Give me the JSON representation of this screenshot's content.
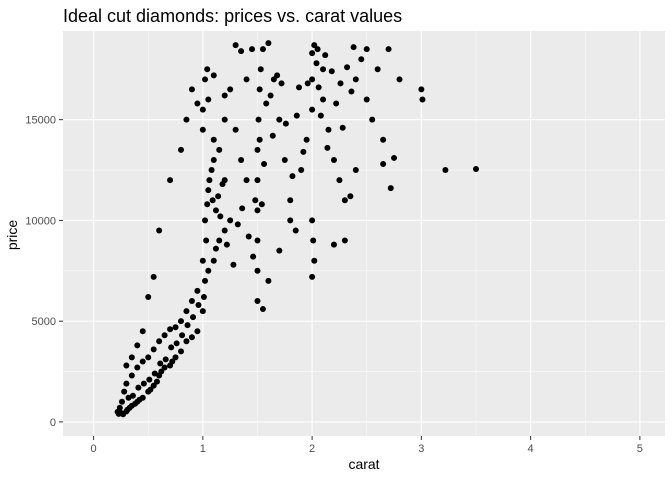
{
  "chart_data": {
    "type": "scatter",
    "title": "Ideal cut diamonds: prices vs. carat values",
    "xlabel": "carat",
    "ylabel": "price",
    "xlim": [
      -0.28,
      5.23
    ],
    "ylim": [
      -700,
      19400
    ],
    "x_ticks": [
      0,
      1,
      2,
      3,
      4,
      5
    ],
    "x_tick_labels": [
      "0",
      "1",
      "2",
      "3",
      "4",
      "5"
    ],
    "y_ticks": [
      0,
      5000,
      10000,
      15000
    ],
    "y_tick_labels": [
      "0",
      "5000",
      "10000",
      "15000"
    ],
    "grid": true,
    "point_color": "#000000",
    "panel_color": "#ebebeb",
    "series": [
      {
        "values": [
          [
            0.23,
            400
          ],
          [
            0.25,
            450
          ],
          [
            0.27,
            380
          ],
          [
            0.3,
            520
          ],
          [
            0.31,
            600
          ],
          [
            0.33,
            700
          ],
          [
            0.35,
            800
          ],
          [
            0.38,
            900
          ],
          [
            0.4,
            1000
          ],
          [
            0.42,
            1100
          ],
          [
            0.45,
            1200
          ],
          [
            0.5,
            1500
          ],
          [
            0.52,
            1600
          ],
          [
            0.55,
            1800
          ],
          [
            0.58,
            2000
          ],
          [
            0.6,
            2300
          ],
          [
            0.62,
            2500
          ],
          [
            0.65,
            2700
          ],
          [
            0.7,
            2800
          ],
          [
            0.72,
            3000
          ],
          [
            0.75,
            3200
          ],
          [
            0.8,
            3500
          ],
          [
            0.85,
            4000
          ],
          [
            0.9,
            4200
          ],
          [
            0.95,
            4500
          ],
          [
            1.0,
            5500
          ],
          [
            1.01,
            6200
          ],
          [
            1.02,
            7000
          ],
          [
            1.05,
            7500
          ],
          [
            1.1,
            8000
          ],
          [
            1.12,
            8600
          ],
          [
            1.15,
            9000
          ],
          [
            1.2,
            9500
          ],
          [
            1.25,
            10000
          ],
          [
            0.3,
            1900
          ],
          [
            0.35,
            2300
          ],
          [
            0.4,
            2700
          ],
          [
            0.45,
            3000
          ],
          [
            0.5,
            3200
          ],
          [
            0.55,
            3600
          ],
          [
            0.6,
            4000
          ],
          [
            0.65,
            4300
          ],
          [
            0.7,
            4600
          ],
          [
            0.75,
            4700
          ],
          [
            0.8,
            5000
          ],
          [
            0.85,
            5500
          ],
          [
            0.9,
            6000
          ],
          [
            0.95,
            6500
          ],
          [
            1.0,
            8000
          ],
          [
            1.02,
            10000
          ],
          [
            1.05,
            11500
          ],
          [
            1.08,
            12500
          ],
          [
            1.1,
            13000
          ],
          [
            1.15,
            13500
          ],
          [
            1.2,
            12000
          ],
          [
            1.0,
            14500
          ],
          [
            1.0,
            15500
          ],
          [
            1.02,
            17000
          ],
          [
            1.04,
            17500
          ],
          [
            1.05,
            16000
          ],
          [
            1.1,
            14000
          ],
          [
            1.2,
            15000
          ],
          [
            1.25,
            16500
          ],
          [
            1.3,
            14500
          ],
          [
            1.35,
            13000
          ],
          [
            1.4,
            12000
          ],
          [
            1.5,
            9000
          ],
          [
            1.5,
            10500
          ],
          [
            1.5,
            12000
          ],
          [
            1.5,
            13500
          ],
          [
            1.51,
            15000
          ],
          [
            1.52,
            16500
          ],
          [
            1.53,
            17500
          ],
          [
            1.55,
            18500
          ],
          [
            1.6,
            18800
          ],
          [
            1.65,
            17000
          ],
          [
            1.7,
            15000
          ],
          [
            1.75,
            13000
          ],
          [
            1.8,
            11000
          ],
          [
            1.85,
            9500
          ],
          [
            1.5,
            7500
          ],
          [
            1.5,
            6000
          ],
          [
            1.55,
            5600
          ],
          [
            1.6,
            7000
          ],
          [
            1.7,
            8500
          ],
          [
            1.8,
            10000
          ],
          [
            1.9,
            12500
          ],
          [
            1.95,
            14000
          ],
          [
            2.0,
            15500
          ],
          [
            2.0,
            17000
          ],
          [
            2.0,
            18300
          ],
          [
            2.02,
            18700
          ],
          [
            2.05,
            18500
          ],
          [
            2.1,
            17500
          ],
          [
            2.1,
            16000
          ],
          [
            2.15,
            14500
          ],
          [
            2.2,
            13000
          ],
          [
            2.25,
            12000
          ],
          [
            2.3,
            11000
          ],
          [
            2.0,
            10000
          ],
          [
            2.01,
            9000
          ],
          [
            2.02,
            8000
          ],
          [
            2.0,
            7200
          ],
          [
            2.2,
            8800
          ],
          [
            2.3,
            9000
          ],
          [
            2.35,
            11200
          ],
          [
            2.4,
            12500
          ],
          [
            2.4,
            17000
          ],
          [
            2.45,
            18000
          ],
          [
            2.5,
            18500
          ],
          [
            2.5,
            16000
          ],
          [
            2.55,
            15000
          ],
          [
            2.6,
            17500
          ],
          [
            2.65,
            14000
          ],
          [
            2.65,
            12800
          ],
          [
            2.7,
            18500
          ],
          [
            2.72,
            11600
          ],
          [
            2.75,
            13100
          ],
          [
            2.8,
            17000
          ],
          [
            3.0,
            16500
          ],
          [
            3.01,
            16000
          ],
          [
            3.22,
            12500
          ],
          [
            3.5,
            12550
          ],
          [
            1.3,
            18700
          ],
          [
            1.35,
            18400
          ],
          [
            1.45,
            18500
          ],
          [
            1.4,
            17000
          ],
          [
            1.2,
            16200
          ],
          [
            1.1,
            17200
          ],
          [
            0.9,
            16500
          ],
          [
            0.95,
            15800
          ],
          [
            0.85,
            15000
          ],
          [
            0.8,
            13500
          ],
          [
            0.7,
            12000
          ],
          [
            0.6,
            9500
          ],
          [
            0.55,
            7200
          ],
          [
            0.5,
            6200
          ],
          [
            0.45,
            4500
          ],
          [
            0.4,
            3800
          ],
          [
            0.35,
            3200
          ],
          [
            0.3,
            2800
          ],
          [
            0.28,
            1500
          ],
          [
            0.26,
            1000
          ],
          [
            0.24,
            700
          ],
          [
            0.22,
            500
          ],
          [
            0.32,
            1200
          ],
          [
            0.36,
            1300
          ],
          [
            0.41,
            1700
          ],
          [
            0.46,
            1900
          ],
          [
            0.51,
            2100
          ],
          [
            0.56,
            2400
          ],
          [
            0.61,
            2900
          ],
          [
            0.66,
            3100
          ],
          [
            0.71,
            3700
          ],
          [
            0.76,
            3900
          ],
          [
            0.81,
            4300
          ],
          [
            0.86,
            4800
          ],
          [
            0.91,
            5200
          ],
          [
            0.96,
            5800
          ],
          [
            1.03,
            9000
          ],
          [
            1.04,
            10800
          ],
          [
            1.06,
            12000
          ],
          [
            1.09,
            11000
          ],
          [
            1.12,
            10500
          ],
          [
            1.14,
            11200
          ],
          [
            1.16,
            10200
          ],
          [
            1.18,
            11800
          ],
          [
            1.22,
            8800
          ],
          [
            1.28,
            7800
          ],
          [
            1.32,
            9800
          ],
          [
            1.36,
            10600
          ],
          [
            1.42,
            9200
          ],
          [
            1.46,
            8200
          ],
          [
            1.48,
            11000
          ],
          [
            1.52,
            14000
          ],
          [
            1.54,
            10800
          ],
          [
            1.56,
            12800
          ],
          [
            1.58,
            15800
          ],
          [
            1.62,
            16200
          ],
          [
            1.64,
            14200
          ],
          [
            1.68,
            17200
          ],
          [
            1.72,
            16800
          ],
          [
            1.76,
            14800
          ],
          [
            1.82,
            12200
          ],
          [
            1.86,
            15200
          ],
          [
            1.88,
            16600
          ],
          [
            1.92,
            13400
          ],
          [
            1.96,
            16800
          ],
          [
            2.04,
            17800
          ],
          [
            2.06,
            16600
          ],
          [
            2.08,
            15200
          ],
          [
            2.12,
            18200
          ],
          [
            2.14,
            13600
          ],
          [
            2.18,
            17400
          ],
          [
            2.22,
            15800
          ],
          [
            2.26,
            16800
          ],
          [
            2.28,
            14600
          ],
          [
            2.32,
            17600
          ],
          [
            2.36,
            16400
          ],
          [
            2.38,
            18600
          ]
        ]
      }
    ]
  }
}
